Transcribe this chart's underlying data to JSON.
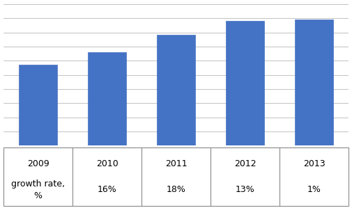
{
  "categories": [
    "2009",
    "2010",
    "2011",
    "2012",
    "2013"
  ],
  "sublabels": [
    "growth rate,\n%",
    "16%",
    "18%",
    "13%",
    "1%"
  ],
  "values": [
    100,
    116,
    136.88,
    154.67,
    156.22
  ],
  "bar_color": "#4472C4",
  "bar_edge_color": "#4472C4",
  "background_color": "#FFFFFF",
  "grid_color": "#AAAAAA",
  "ylim": [
    0,
    175
  ],
  "ytick_count": 10,
  "bar_width": 0.55,
  "tick_fontsize": 9,
  "outer_border_color": "#888888",
  "table_line_color": "#888888"
}
